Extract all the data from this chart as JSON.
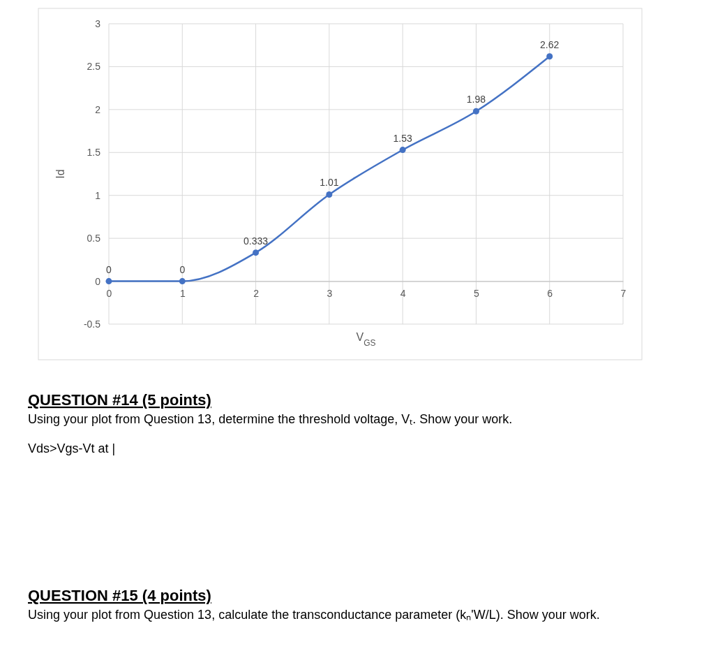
{
  "chart_data": {
    "type": "line",
    "xlabel": "V$_{GS}$",
    "ylabel": "Id",
    "x": [
      0,
      1,
      2,
      3,
      4,
      5,
      6
    ],
    "series": [
      {
        "color": "#4472c4",
        "values": [
          0,
          0,
          0.333,
          1.01,
          1.53,
          1.98,
          2.62
        ]
      }
    ],
    "xlim": [
      0,
      7
    ],
    "xticks": [
      0,
      1,
      2,
      3,
      4,
      5,
      6,
      7
    ],
    "ylim": [
      -0.5,
      3
    ],
    "yticks": [
      -0.5,
      0,
      0.5,
      1,
      1.5,
      2,
      2.5,
      3
    ],
    "grid": true,
    "marker": "circle",
    "data_labels": true,
    "annotations": [
      "QUESTION #14 (5 points)",
      "Using your plot from Question 13, determine the threshold voltage, Vₜ.  Show your work.",
      "Vds>Vgs-Vt at |",
      "QUESTION #15 (4 points)",
      "Using your plot from Question 13, calculate the transconductance parameter (kₙ'W/L).  Show your work."
    ]
  }
}
